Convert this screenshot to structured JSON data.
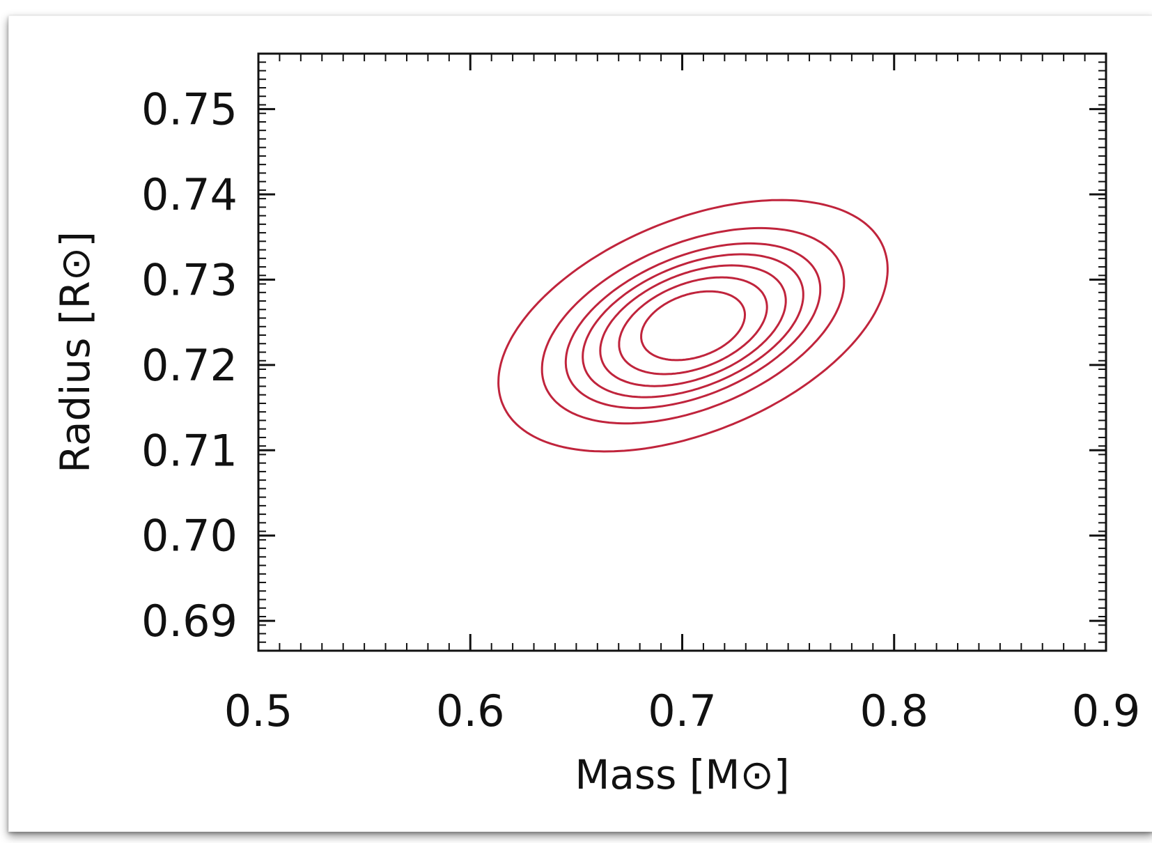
{
  "chart_data": {
    "type": "contour",
    "xlabel": "Mass [M⊙]",
    "ylabel": "Radius [R⊙]",
    "xlim": [
      0.5,
      0.9
    ],
    "ylim": [
      0.6865,
      0.7565
    ],
    "x_ticks": [
      {
        "value": 0.5,
        "label": "0.5"
      },
      {
        "value": 0.6,
        "label": "0.6"
      },
      {
        "value": 0.7,
        "label": "0.7"
      },
      {
        "value": 0.8,
        "label": "0.8"
      },
      {
        "value": 0.9,
        "label": "0.9"
      }
    ],
    "y_ticks": [
      {
        "value": 0.69,
        "label": "0.69"
      },
      {
        "value": 0.7,
        "label": "0.70"
      },
      {
        "value": 0.71,
        "label": "0.71"
      },
      {
        "value": 0.72,
        "label": "0.72"
      },
      {
        "value": 0.73,
        "label": "0.73"
      },
      {
        "value": 0.74,
        "label": "0.74"
      },
      {
        "value": 0.75,
        "label": "0.75"
      }
    ],
    "contour_color": "#c0243c",
    "contours": [
      {
        "center": [
          0.7051,
          0.7246
        ],
        "semi_major": 0.0273,
        "semi_minor": 0.0196,
        "theta": 0.69
      },
      {
        "center": [
          0.7051,
          0.7246
        ],
        "semi_major": 0.0397,
        "semi_minor": 0.0263,
        "theta": 0.69
      },
      {
        "center": [
          0.7051,
          0.7246
        ],
        "semi_major": 0.0502,
        "semi_minor": 0.0321,
        "theta": 0.69
      },
      {
        "center": [
          0.7051,
          0.7246
        ],
        "semi_major": 0.06,
        "semi_minor": 0.0374,
        "theta": 0.69
      },
      {
        "center": [
          0.7051,
          0.7246
        ],
        "semi_major": 0.0694,
        "semi_minor": 0.0428,
        "theta": 0.69
      },
      {
        "center": [
          0.7051,
          0.7246
        ],
        "semi_major": 0.0824,
        "semi_minor": 0.0507,
        "theta": 0.69
      },
      {
        "center": [
          0.7051,
          0.7246
        ],
        "semi_major": 0.1063,
        "semi_minor": 0.065,
        "theta": 0.69
      }
    ]
  }
}
